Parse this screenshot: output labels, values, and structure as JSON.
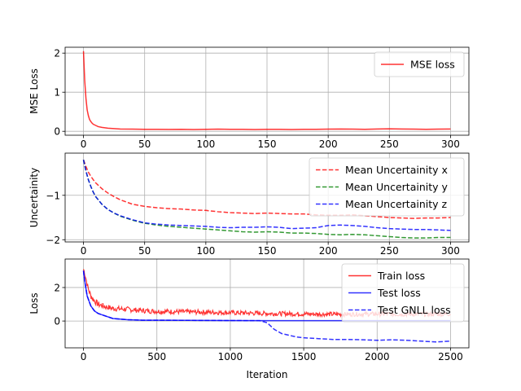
{
  "chart_data": [
    {
      "type": "line",
      "xlabel": "",
      "ylabel": "MSE Loss",
      "xlim": [
        -15,
        315
      ],
      "ylim": [
        -0.1,
        2.15
      ],
      "xticks": [
        0,
        50,
        100,
        150,
        200,
        250,
        300
      ],
      "yticks": [
        0,
        1,
        2
      ],
      "grid": true,
      "legend_position": "top-right",
      "series": [
        {
          "name": "MSE loss",
          "color": "#ff0000",
          "style": "solid",
          "x": [
            0,
            1,
            2,
            3,
            4,
            5,
            6,
            7,
            8,
            10,
            12,
            15,
            20,
            25,
            30,
            40,
            50,
            60,
            70,
            80,
            90,
            100,
            110,
            120,
            130,
            140,
            150,
            160,
            170,
            180,
            190,
            200,
            210,
            220,
            230,
            240,
            250,
            260,
            270,
            280,
            290,
            300
          ],
          "y": [
            2.05,
            1.3,
            0.85,
            0.55,
            0.4,
            0.3,
            0.25,
            0.21,
            0.18,
            0.15,
            0.12,
            0.1,
            0.08,
            0.07,
            0.06,
            0.055,
            0.05,
            0.05,
            0.048,
            0.05,
            0.045,
            0.05,
            0.055,
            0.05,
            0.05,
            0.045,
            0.05,
            0.05,
            0.045,
            0.05,
            0.05,
            0.055,
            0.06,
            0.055,
            0.05,
            0.06,
            0.065,
            0.06,
            0.055,
            0.05,
            0.055,
            0.06
          ]
        }
      ]
    },
    {
      "type": "line",
      "xlabel": "",
      "ylabel": "Uncertainity",
      "xlim": [
        -15,
        315
      ],
      "ylim": [
        -2.05,
        -0.05
      ],
      "xticks": [
        0,
        50,
        100,
        150,
        200,
        250,
        300
      ],
      "yticks": [
        -1,
        -2
      ],
      "grid": true,
      "legend_position": "top-right",
      "series": [
        {
          "name": "Mean Uncertainity x",
          "color": "#ff0000",
          "style": "dashed",
          "x": [
            0,
            2,
            4,
            6,
            8,
            10,
            15,
            20,
            25,
            30,
            40,
            50,
            60,
            70,
            80,
            90,
            100,
            110,
            120,
            130,
            140,
            150,
            160,
            170,
            180,
            190,
            200,
            210,
            220,
            230,
            240,
            250,
            260,
            270,
            280,
            290,
            300
          ],
          "y": [
            -0.2,
            -0.35,
            -0.48,
            -0.57,
            -0.65,
            -0.72,
            -0.85,
            -0.95,
            -1.03,
            -1.1,
            -1.2,
            -1.25,
            -1.28,
            -1.3,
            -1.31,
            -1.33,
            -1.34,
            -1.37,
            -1.39,
            -1.4,
            -1.41,
            -1.4,
            -1.41,
            -1.42,
            -1.42,
            -1.44,
            -1.45,
            -1.45,
            -1.44,
            -1.46,
            -1.48,
            -1.5,
            -1.51,
            -1.52,
            -1.51,
            -1.51,
            -1.5
          ]
        },
        {
          "name": "Mean Uncertainity y",
          "color": "#008000",
          "style": "dashed",
          "x": [
            0,
            2,
            4,
            6,
            8,
            10,
            15,
            20,
            25,
            30,
            40,
            50,
            60,
            70,
            80,
            90,
            100,
            110,
            120,
            130,
            140,
            150,
            160,
            170,
            180,
            190,
            200,
            210,
            220,
            230,
            240,
            250,
            260,
            270,
            280,
            290,
            300
          ],
          "y": [
            -0.2,
            -0.45,
            -0.65,
            -0.8,
            -0.93,
            -1.03,
            -1.2,
            -1.32,
            -1.4,
            -1.47,
            -1.56,
            -1.63,
            -1.67,
            -1.7,
            -1.72,
            -1.74,
            -1.76,
            -1.78,
            -1.8,
            -1.82,
            -1.83,
            -1.82,
            -1.83,
            -1.85,
            -1.85,
            -1.86,
            -1.88,
            -1.89,
            -1.88,
            -1.89,
            -1.91,
            -1.93,
            -1.95,
            -1.96,
            -1.96,
            -1.95,
            -1.95
          ]
        },
        {
          "name": "Mean Uncertainity z",
          "color": "#0000ff",
          "style": "dashed",
          "x": [
            0,
            2,
            4,
            6,
            8,
            10,
            15,
            20,
            25,
            30,
            40,
            50,
            60,
            70,
            80,
            90,
            100,
            110,
            120,
            130,
            140,
            150,
            160,
            170,
            180,
            190,
            200,
            210,
            220,
            230,
            240,
            250,
            260,
            270,
            280,
            290,
            300
          ],
          "y": [
            -0.2,
            -0.45,
            -0.65,
            -0.8,
            -0.93,
            -1.03,
            -1.2,
            -1.32,
            -1.4,
            -1.46,
            -1.55,
            -1.62,
            -1.65,
            -1.67,
            -1.68,
            -1.69,
            -1.7,
            -1.72,
            -1.73,
            -1.72,
            -1.72,
            -1.71,
            -1.72,
            -1.75,
            -1.74,
            -1.73,
            -1.68,
            -1.67,
            -1.68,
            -1.7,
            -1.73,
            -1.75,
            -1.76,
            -1.77,
            -1.77,
            -1.78,
            -1.79
          ]
        }
      ]
    },
    {
      "type": "line",
      "xlabel": "Iteration",
      "ylabel": "Loss",
      "xlim": [
        -125,
        2625
      ],
      "ylim": [
        -1.6,
        3.7
      ],
      "xticks": [
        0,
        500,
        1000,
        1500,
        2000,
        2500
      ],
      "yticks": [
        0,
        2
      ],
      "grid": true,
      "legend_position": "top-right",
      "series": [
        {
          "name": "Train loss",
          "color": "#ff0000",
          "style": "solid",
          "noisy": true,
          "x": [
            0,
            10,
            20,
            30,
            50,
            75,
            100,
            150,
            200,
            300,
            400,
            500,
            700,
            1000,
            1250,
            1500,
            1750,
            2000,
            2250,
            2500
          ],
          "y": [
            3.1,
            2.8,
            2.4,
            2.0,
            1.5,
            1.2,
            1.0,
            0.85,
            0.75,
            0.7,
            0.62,
            0.58,
            0.55,
            0.5,
            0.45,
            0.42,
            0.4,
            0.42,
            0.4,
            0.42
          ]
        },
        {
          "name": "Test loss",
          "color": "#0000ff",
          "style": "solid",
          "x": [
            0,
            10,
            25,
            50,
            75,
            100,
            150,
            200,
            300,
            400,
            500,
            700,
            1000,
            1250,
            1500,
            1750,
            2000,
            2250,
            2500
          ],
          "y": [
            3.0,
            2.3,
            1.5,
            0.9,
            0.6,
            0.45,
            0.3,
            0.15,
            0.08,
            0.05,
            0.05,
            0.04,
            0.03,
            0.02,
            0.02,
            0.02,
            0.02,
            0.02,
            0.02
          ]
        },
        {
          "name": "Test GNLL loss",
          "color": "#0000ff",
          "style": "dashed",
          "x": [
            0,
            10,
            25,
            50,
            75,
            100,
            150,
            200,
            300,
            400,
            500,
            700,
            1000,
            1200,
            1250,
            1300,
            1350,
            1400,
            1450,
            1500,
            1600,
            1700,
            1800,
            1900,
            2000,
            2100,
            2200,
            2300,
            2400,
            2500
          ],
          "y": [
            3.0,
            2.3,
            1.5,
            0.9,
            0.6,
            0.45,
            0.3,
            0.15,
            0.08,
            0.05,
            0.05,
            0.04,
            0.03,
            0.02,
            -0.1,
            -0.5,
            -0.75,
            -0.85,
            -0.95,
            -1.0,
            -1.05,
            -1.1,
            -1.1,
            -1.12,
            -1.15,
            -1.12,
            -1.15,
            -1.2,
            -1.25,
            -1.2
          ]
        }
      ]
    }
  ]
}
